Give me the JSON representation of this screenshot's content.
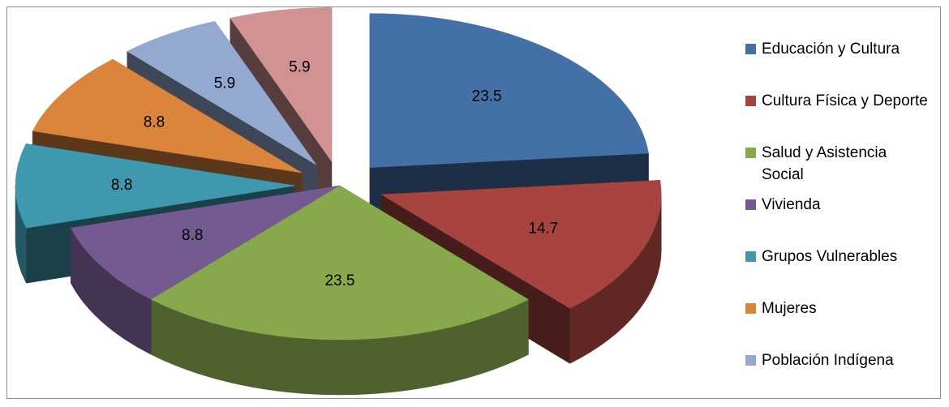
{
  "chart_data": {
    "type": "pie",
    "title": "",
    "slices": [
      {
        "name": "Educación y Cultura",
        "value": 23.5,
        "label": "23.5",
        "color": "#4470A8",
        "exploded": true
      },
      {
        "name": "Cultura Física y Deporte",
        "value": 14.7,
        "label": "14.7",
        "color": "#A84440",
        "exploded": true
      },
      {
        "name": "Salud y Asistencia Social",
        "value": 23.5,
        "label": "23.5",
        "color": "#88A84C",
        "exploded": false
      },
      {
        "name": "Vivienda",
        "value": 8.8,
        "label": "8.8",
        "color": "#735A90",
        "exploded": false
      },
      {
        "name": "Grupos Vulnerables",
        "value": 8.8,
        "label": "8.8",
        "color": "#3E98AE",
        "exploded": true
      },
      {
        "name": "Mujeres",
        "value": 8.8,
        "label": "8.8",
        "color": "#DB843C",
        "exploded": true
      },
      {
        "name": "Población Indígena",
        "value": 5.9,
        "label": "5.9",
        "color": "#93A9CF",
        "exploded": true
      },
      {
        "name": "",
        "value": 5.9,
        "label": "5.9",
        "color": "#D09292",
        "exploded": true
      }
    ],
    "legend": {
      "placement": "right",
      "entries": [
        {
          "label": "Educación y Cultura",
          "color": "#4470A8"
        },
        {
          "label": "Cultura Física y Deporte",
          "color": "#A84440"
        },
        {
          "label": "Salud y Asistencia Social",
          "color": "#88A84C"
        },
        {
          "label": "Vivienda",
          "color": "#735A90"
        },
        {
          "label": "Grupos Vulnerables",
          "color": "#3E98AE"
        },
        {
          "label": "Mujeres",
          "color": "#DB843C"
        },
        {
          "label": "Población Indígena",
          "color": "#93A9CF"
        }
      ]
    }
  }
}
